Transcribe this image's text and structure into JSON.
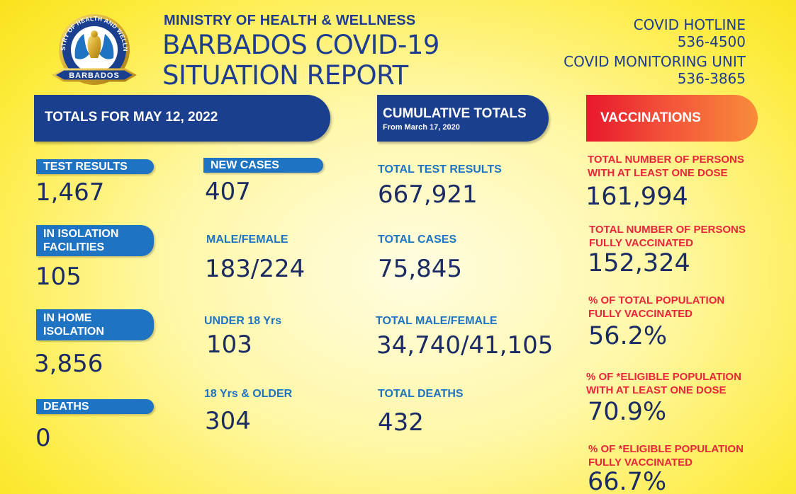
{
  "header": {
    "ministry": "MINISTRY OF HEALTH & WELLNESS",
    "title_line1": "BARBADOS COVID-19",
    "title_line2": "SITUATION REPORT",
    "seal_top": "MINISTRY OF HEALTH AND WELLNESS",
    "seal_bottom": "BARBADOS",
    "hotline_label": "COVID HOTLINE",
    "hotline_number": "536-4500",
    "monitoring_label": "COVID MONITORING UNIT",
    "monitoring_number": "536-3865"
  },
  "totals": {
    "banner": "TOTALS FOR MAY 12, 2022",
    "test_results_label": "TEST RESULTS",
    "test_results": "1,467",
    "isolation_facilities_label1": "IN ISOLATION",
    "isolation_facilities_label2": "FACILITIES",
    "isolation_facilities": "105",
    "home_isolation_label1": "IN HOME",
    "home_isolation_label2": "ISOLATION",
    "home_isolation": "3,856",
    "deaths_label": "DEATHS",
    "deaths": "0",
    "new_cases_label": "NEW CASES",
    "new_cases": "407",
    "male_female_label": "MALE/FEMALE",
    "male_female": "183/224",
    "under18_label": "UNDER 18 Yrs",
    "under18": "103",
    "over18_label": "18 Yrs & OLDER",
    "over18": "304"
  },
  "cumulative": {
    "banner": "CUMULATIVE TOTALS",
    "banner_sub": "From March 17, 2020",
    "test_results_label": "TOTAL TEST RESULTS",
    "test_results": "667,921",
    "cases_label": "TOTAL CASES",
    "cases": "75,845",
    "male_female_label": "TOTAL MALE/FEMALE",
    "male_female": "34,740/41,105",
    "deaths_label": "TOTAL DEATHS",
    "deaths": "432"
  },
  "vaccinations": {
    "banner": "VACCINATIONS",
    "one_dose_label1": "TOTAL NUMBER OF PERSONS",
    "one_dose_label2": "WITH AT LEAST ONE DOSE",
    "one_dose": "161,994",
    "fully_label1": "TOTAL NUMBER OF PERSONS",
    "fully_label2": "FULLY VACCINATED",
    "fully": "152,324",
    "pct_total_label1": "% OF TOTAL POPULATION",
    "pct_total_label2": "FULLY VACCINATED",
    "pct_total": "56.2%",
    "pct_eligible_one_label1": "% OF *ELIGIBLE POPULATION",
    "pct_eligible_one_label2": "WITH AT LEAST ONE DOSE",
    "pct_eligible_one": "70.9%",
    "pct_eligible_full_label1": "% OF *ELIGIBLE POPULATION",
    "pct_eligible_full_label2": "FULLY VACCINATED",
    "pct_eligible_full": "66.7%"
  },
  "colors": {
    "navy": "#1b3f8f",
    "blue": "#1e74c2",
    "red": "#e8253a",
    "orange": "#f98c3a",
    "yellow": "#fdeb3c"
  }
}
